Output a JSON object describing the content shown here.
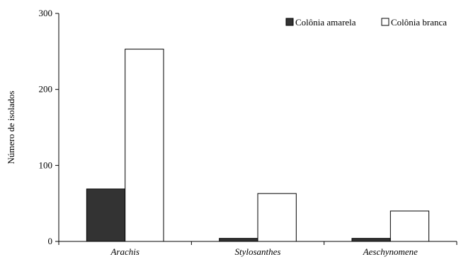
{
  "chart_data": {
    "type": "bar",
    "title": "",
    "xlabel": "",
    "ylabel": "Número de isolados",
    "categories": [
      "Arachis",
      "Stylosanthes",
      "Aeschynomene"
    ],
    "series": [
      {
        "name": "Colônia amarela",
        "values": [
          69,
          4,
          4
        ],
        "color": "#333333"
      },
      {
        "name": "Colônia branca",
        "values": [
          253,
          63,
          40
        ],
        "color": "#ffffff"
      }
    ],
    "ylim": [
      0,
      300
    ],
    "yticks": [
      0,
      100,
      200,
      300
    ],
    "grid": false,
    "legend_position": "top-right"
  }
}
